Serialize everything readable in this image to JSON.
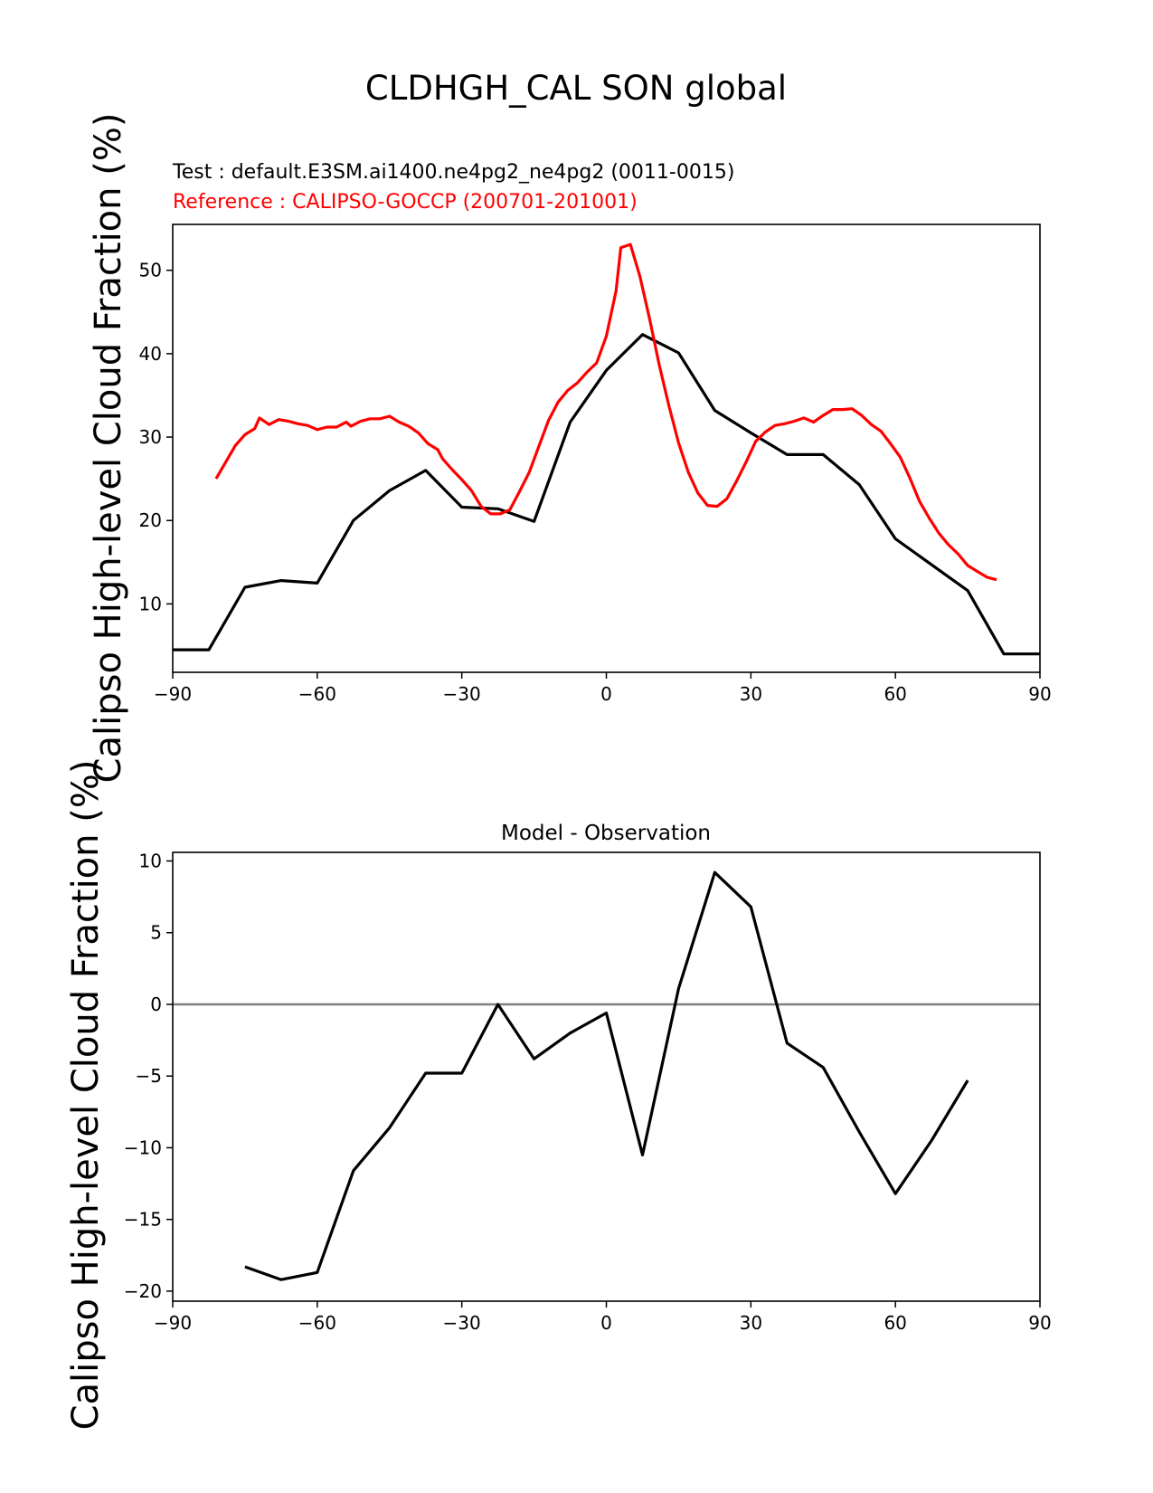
{
  "figure": {
    "suptitle": "CLDHGH_CAL SON global"
  },
  "colors": {
    "test": "#000000",
    "reference": "#ff0000",
    "zero_line": "#808080"
  },
  "chart_data": [
    {
      "type": "line",
      "test_label": "Test : default.E3SM.ai1400.ne4pg2_ne4pg2 (0011-0015)",
      "reference_label": "Reference : CALIPSO-GOCCP (200701-201001)",
      "ylabel": "Calipso High-level Cloud Fraction (%)",
      "xlim": [
        -90,
        90
      ],
      "ylim": [
        1.8,
        55.5
      ],
      "xticks": [
        -90,
        -60,
        -30,
        0,
        30,
        60,
        90
      ],
      "xtick_labels": [
        "−90",
        "−60",
        "−30",
        "0",
        "30",
        "60",
        "90"
      ],
      "yticks": [
        10,
        20,
        30,
        40,
        50
      ],
      "ytick_labels": [
        "10",
        "20",
        "30",
        "40",
        "50"
      ],
      "grid": false,
      "series": [
        {
          "name": "Test",
          "x": [
            -90,
            -82.5,
            -75,
            -67.5,
            -60,
            -52.5,
            -45,
            -37.5,
            -30,
            -22.5,
            -15,
            -7.5,
            0,
            7.5,
            15,
            22.5,
            30,
            37.5,
            45,
            52.5,
            60,
            67.5,
            75,
            82.5,
            90
          ],
          "y": [
            4.5,
            4.5,
            12.0,
            12.8,
            12.5,
            20.0,
            23.6,
            26.0,
            21.6,
            21.4,
            19.9,
            31.8,
            38.0,
            42.3,
            40.1,
            33.2,
            30.5,
            27.9,
            27.9,
            24.3,
            17.8,
            14.7,
            11.6,
            4.0,
            4.0
          ]
        },
        {
          "name": "Reference",
          "x": [
            -81,
            -79,
            -77,
            -75,
            -73,
            -72,
            -70,
            -68,
            -66,
            -64,
            -62,
            -60,
            -58,
            -56,
            -54,
            -53,
            -51,
            -49,
            -47,
            -45,
            -43,
            -41,
            -39,
            -37,
            -35,
            -34,
            -32,
            -30,
            -28,
            -26,
            -24,
            -22,
            -20,
            -18,
            -16,
            -14,
            -12,
            -10,
            -8,
            -6,
            -4,
            -2,
            0,
            2,
            3,
            5,
            7,
            9,
            11,
            13,
            15,
            17,
            19,
            21,
            23,
            25,
            27,
            29,
            31,
            33,
            35,
            37,
            39,
            41,
            43,
            45,
            47,
            49,
            51,
            53,
            55,
            57,
            59,
            61,
            63,
            65,
            67,
            69,
            71,
            73,
            75,
            77,
            79,
            81
          ],
          "y": [
            25.0,
            27.0,
            29.0,
            30.3,
            31.0,
            32.3,
            31.5,
            32.1,
            31.9,
            31.6,
            31.4,
            30.9,
            31.2,
            31.2,
            31.8,
            31.3,
            31.9,
            32.2,
            32.2,
            32.5,
            31.8,
            31.3,
            30.5,
            29.2,
            28.5,
            27.4,
            26.1,
            24.9,
            23.6,
            21.7,
            20.8,
            20.8,
            21.3,
            23.5,
            25.8,
            28.9,
            32.0,
            34.2,
            35.6,
            36.5,
            37.8,
            38.9,
            42.1,
            47.5,
            52.7,
            53.1,
            49.2,
            44.1,
            38.6,
            33.7,
            29.3,
            25.8,
            23.3,
            21.8,
            21.7,
            22.6,
            24.7,
            27.0,
            29.5,
            30.6,
            31.4,
            31.6,
            31.9,
            32.3,
            31.8,
            32.6,
            33.3,
            33.3,
            33.4,
            32.6,
            31.5,
            30.7,
            29.2,
            27.6,
            25.1,
            22.3,
            20.3,
            18.5,
            17.1,
            16.0,
            14.6,
            13.9,
            13.2,
            12.9
          ]
        }
      ]
    },
    {
      "type": "line",
      "title": "Model - Observation",
      "ylabel": "Calipso High-level Cloud Fraction (%)",
      "xlim": [
        -90,
        90
      ],
      "ylim": [
        -20.7,
        10.6
      ],
      "xticks": [
        -90,
        -60,
        -30,
        0,
        30,
        60,
        90
      ],
      "xtick_labels": [
        "−90",
        "−60",
        "−30",
        "0",
        "30",
        "60",
        "90"
      ],
      "yticks": [
        -20,
        -15,
        -10,
        -5,
        0,
        5,
        10
      ],
      "ytick_labels": [
        "−20",
        "−15",
        "−10",
        "−5",
        "0",
        "5",
        "10"
      ],
      "zero_line": 0,
      "grid": false,
      "series": [
        {
          "name": "Model - Observation",
          "x": [
            -75,
            -67.5,
            -60,
            -52.5,
            -45,
            -37.5,
            -30,
            -22.5,
            -15,
            -7.5,
            0,
            7.5,
            15,
            22.5,
            30,
            37.5,
            45,
            52.5,
            60,
            67.5,
            75
          ],
          "y": [
            -18.3,
            -19.2,
            -18.7,
            -11.6,
            -8.6,
            -4.8,
            -4.8,
            0.0,
            -3.8,
            -2.0,
            -0.6,
            -10.5,
            1.1,
            9.2,
            6.8,
            -2.7,
            -4.4,
            -8.9,
            -13.2,
            -9.5,
            -5.3
          ]
        }
      ]
    }
  ]
}
